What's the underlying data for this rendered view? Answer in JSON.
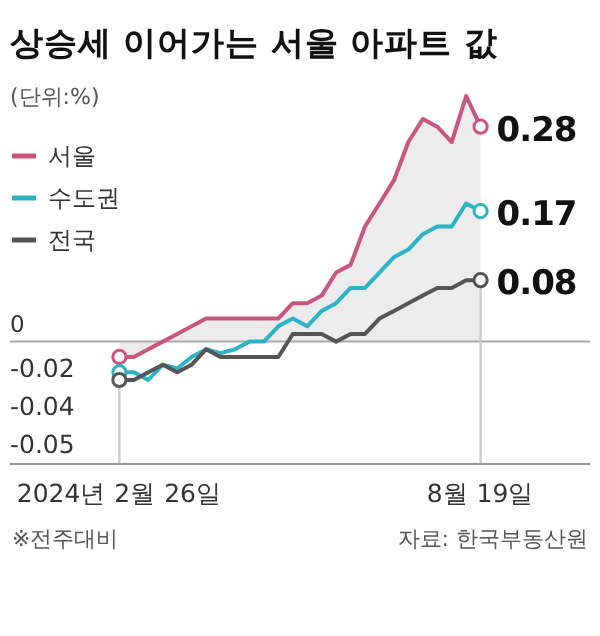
{
  "chart_data": {
    "type": "line",
    "title": "상승세 이어가는 서울 아파트 값",
    "subtitle": "(단위:%)",
    "x": [
      "2024-02-26",
      "2024-03-04",
      "2024-03-11",
      "2024-03-18",
      "2024-03-25",
      "2024-04-01",
      "2024-04-08",
      "2024-04-15",
      "2024-04-22",
      "2024-04-29",
      "2024-05-06",
      "2024-05-13",
      "2024-05-20",
      "2024-05-27",
      "2024-06-03",
      "2024-06-10",
      "2024-06-17",
      "2024-06-24",
      "2024-07-01",
      "2024-07-08",
      "2024-07-15",
      "2024-07-22",
      "2024-07-29",
      "2024-08-05",
      "2024-08-12",
      "2024-08-19"
    ],
    "series": [
      {
        "name": "서울",
        "type": "area",
        "color": "#c9577c",
        "values": [
          -0.02,
          -0.02,
          -0.01,
          0.0,
          0.01,
          0.02,
          0.03,
          0.03,
          0.03,
          0.03,
          0.03,
          0.03,
          0.05,
          0.05,
          0.06,
          0.09,
          0.1,
          0.15,
          0.18,
          0.21,
          0.26,
          0.29,
          0.28,
          0.26,
          0.32,
          0.28
        ],
        "value_labels": [
          "-0.02",
          null,
          null,
          null,
          null,
          null,
          null,
          null,
          null,
          null,
          null,
          null,
          null,
          null,
          null,
          null,
          null,
          null,
          null,
          null,
          null,
          null,
          null,
          null,
          null,
          "0.28"
        ]
      },
      {
        "name": "수도권",
        "color": "#2bb3c6",
        "values": [
          -0.04,
          -0.04,
          -0.05,
          -0.03,
          -0.035,
          -0.02,
          -0.01,
          -0.015,
          -0.01,
          0.0,
          0.0,
          0.02,
          0.03,
          0.02,
          0.04,
          0.05,
          0.07,
          0.07,
          0.09,
          0.11,
          0.12,
          0.14,
          0.15,
          0.15,
          0.18,
          0.17
        ],
        "value_labels": [
          "-0.04",
          null,
          null,
          null,
          null,
          null,
          null,
          null,
          null,
          null,
          null,
          null,
          null,
          null,
          null,
          null,
          null,
          null,
          null,
          null,
          null,
          null,
          null,
          null,
          null,
          "0.17"
        ]
      },
      {
        "name": "전국",
        "color": "#555555",
        "values": [
          -0.05,
          -0.05,
          -0.04,
          -0.03,
          -0.04,
          -0.03,
          -0.01,
          -0.02,
          -0.02,
          -0.02,
          -0.02,
          -0.02,
          0.01,
          0.01,
          0.01,
          0.0,
          0.01,
          0.01,
          0.03,
          0.04,
          0.05,
          0.06,
          0.07,
          0.07,
          0.08,
          0.08
        ],
        "value_labels": [
          "-0.05",
          null,
          null,
          null,
          null,
          null,
          null,
          null,
          null,
          null,
          null,
          null,
          null,
          null,
          null,
          null,
          null,
          null,
          null,
          null,
          null,
          null,
          null,
          null,
          null,
          "0.08"
        ]
      }
    ],
    "xlim": [
      "2024-01-04",
      "2024-10-11"
    ],
    "xticks": [
      {
        "value": "2024-02-26",
        "label": "2024년 2월 26일"
      },
      {
        "value": "2024-08-19",
        "label": "8월 19일"
      }
    ],
    "ref_lines": [
      {
        "axis": "y",
        "value": 0,
        "label": "0",
        "color": "#aaaaaa"
      },
      {
        "axis": "x",
        "value": "2024-02-26",
        "color": "#cccccc"
      },
      {
        "axis": "x",
        "value": "2024-08-19",
        "color": "#cccccc"
      }
    ],
    "legend": "top left",
    "annotations": [
      "※전주대비",
      "자료: 한국부동산원"
    ]
  }
}
